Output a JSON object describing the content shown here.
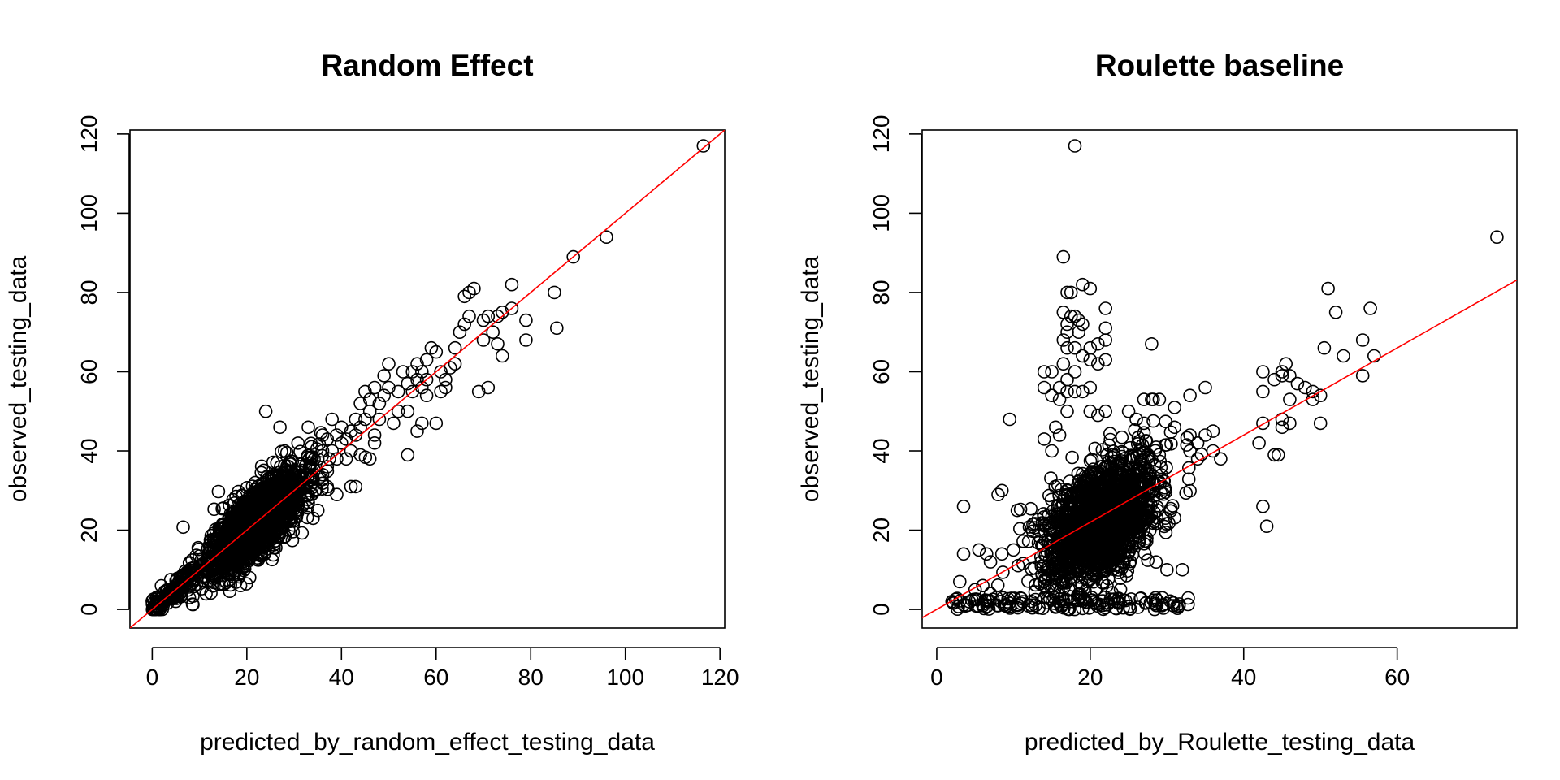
{
  "chart_data": [
    {
      "type": "scatter",
      "title": "Random Effect",
      "xlabel": "predicted_by_random_effect_testing_data",
      "ylabel": "observed_testing_data",
      "xlim": [
        -4.7,
        121
      ],
      "ylim": [
        -4.7,
        121
      ],
      "xticks": [
        0,
        20,
        40,
        60,
        80,
        100,
        120
      ],
      "yticks": [
        0,
        20,
        40,
        60,
        80,
        100,
        120
      ],
      "grid": false,
      "legend": "none",
      "reference_line": {
        "intercept": 0,
        "slope": 1,
        "color": "#ff0000"
      },
      "dense_cluster": {
        "count": 1800,
        "x_mean": 22,
        "x_sd": 5,
        "slope": 1.0,
        "intercept": 0,
        "noise_sd": 4.2,
        "seed": 11
      },
      "low_cluster": {
        "count": 160,
        "x_min": 0,
        "x_max": 9,
        "seed": 21
      },
      "points": [
        [
          116.5,
          117
        ],
        [
          96,
          94
        ],
        [
          89,
          89
        ],
        [
          85,
          80
        ],
        [
          85.5,
          71
        ],
        [
          79,
          73
        ],
        [
          79,
          68
        ],
        [
          76,
          82
        ],
        [
          76,
          76
        ],
        [
          74,
          75
        ],
        [
          73,
          74
        ],
        [
          72,
          70
        ],
        [
          71,
          74
        ],
        [
          70,
          73
        ],
        [
          70,
          68
        ],
        [
          68,
          81
        ],
        [
          67,
          80
        ],
        [
          66,
          79
        ],
        [
          67,
          74
        ],
        [
          66,
          72
        ],
        [
          65,
          70
        ],
        [
          64,
          66
        ],
        [
          64,
          62
        ],
        [
          69,
          55
        ],
        [
          71,
          56
        ],
        [
          74,
          64
        ],
        [
          73,
          67
        ],
        [
          62,
          56
        ],
        [
          60,
          65
        ],
        [
          61,
          60
        ],
        [
          59,
          66
        ],
        [
          58,
          63
        ],
        [
          58,
          58
        ],
        [
          58,
          54
        ],
        [
          57,
          60
        ],
        [
          57,
          56
        ],
        [
          56,
          62
        ],
        [
          56,
          58
        ],
        [
          55,
          60
        ],
        [
          55,
          55
        ],
        [
          54,
          57
        ],
        [
          54,
          50
        ],
        [
          53,
          60
        ],
        [
          52,
          55
        ],
        [
          52,
          50
        ],
        [
          51,
          47
        ],
        [
          50,
          62
        ],
        [
          50,
          56
        ],
        [
          49,
          59
        ],
        [
          49,
          54
        ],
        [
          48,
          52
        ],
        [
          48,
          48
        ],
        [
          47,
          56
        ],
        [
          47,
          44
        ],
        [
          46,
          53
        ],
        [
          46,
          50
        ],
        [
          45,
          55
        ],
        [
          45,
          48
        ],
        [
          44,
          52
        ],
        [
          44,
          46
        ],
        [
          43,
          48
        ],
        [
          43,
          44
        ],
        [
          42,
          45
        ],
        [
          42,
          40
        ],
        [
          41,
          43
        ],
        [
          41,
          38
        ],
        [
          40,
          46
        ],
        [
          40,
          42
        ],
        [
          39,
          44
        ],
        [
          39,
          38
        ],
        [
          38,
          48
        ],
        [
          38,
          40
        ],
        [
          37,
          43
        ],
        [
          37,
          36
        ],
        [
          36,
          40
        ],
        [
          36,
          34
        ],
        [
          35,
          38
        ],
        [
          34,
          32
        ],
        [
          60,
          47
        ],
        [
          54,
          39
        ],
        [
          56,
          45
        ],
        [
          57,
          47
        ],
        [
          62,
          58
        ],
        [
          63,
          61
        ],
        [
          61,
          55
        ],
        [
          47,
          42
        ],
        [
          44,
          39
        ],
        [
          42,
          31
        ],
        [
          43,
          31
        ],
        [
          39,
          29
        ],
        [
          37,
          31
        ],
        [
          35,
          25
        ],
        [
          34,
          23
        ],
        [
          33,
          27
        ],
        [
          33,
          46
        ],
        [
          24,
          50
        ],
        [
          27,
          46
        ],
        [
          28,
          40
        ],
        [
          36,
          44
        ],
        [
          46,
          38
        ]
      ]
    },
    {
      "type": "scatter",
      "title": "Roulette baseline",
      "xlabel": "predicted_by_Roulette_testing_data",
      "ylabel": "observed_testing_data",
      "xlim": [
        -1.9,
        75.6
      ],
      "ylim": [
        -4.7,
        121
      ],
      "xticks": [
        0,
        20,
        40,
        60
      ],
      "yticks": [
        0,
        20,
        40,
        60,
        80,
        100,
        120
      ],
      "grid": false,
      "legend": "none",
      "reference_line": {
        "intercept": 0,
        "slope": 1.1,
        "color": "#ff0000"
      },
      "dense_cluster": {
        "count": 1700,
        "x_mean": 21.5,
        "x_sd": 3.6,
        "slope": 1.05,
        "intercept": 0,
        "noise_sd": 7,
        "seed": 33
      },
      "low_cluster": {
        "count": 140,
        "x_min": 1,
        "x_max": 33,
        "seed": 44
      },
      "points": [
        [
          18,
          117
        ],
        [
          73,
          94
        ],
        [
          16.5,
          89
        ],
        [
          19,
          82
        ],
        [
          20,
          81
        ],
        [
          17,
          80
        ],
        [
          17.5,
          80
        ],
        [
          16.5,
          75
        ],
        [
          17.5,
          74
        ],
        [
          18,
          74
        ],
        [
          19,
          72
        ],
        [
          18.5,
          73
        ],
        [
          17,
          72
        ],
        [
          17,
          70
        ],
        [
          18.5,
          70
        ],
        [
          16.5,
          68
        ],
        [
          17,
          66
        ],
        [
          18,
          66
        ],
        [
          20,
          66
        ],
        [
          22,
          76
        ],
        [
          22,
          71
        ],
        [
          22,
          68
        ],
        [
          21,
          67
        ],
        [
          28,
          67
        ],
        [
          19,
          64
        ],
        [
          20,
          63
        ],
        [
          21,
          62
        ],
        [
          22,
          63
        ],
        [
          16.5,
          62
        ],
        [
          18,
          60
        ],
        [
          14,
          60
        ],
        [
          15,
          60
        ],
        [
          17,
          58
        ],
        [
          16,
          56
        ],
        [
          17,
          55
        ],
        [
          18,
          55
        ],
        [
          19,
          55
        ],
        [
          20,
          56
        ],
        [
          14,
          56
        ],
        [
          15,
          54
        ],
        [
          16,
          53
        ],
        [
          17,
          50
        ],
        [
          15.5,
          46
        ],
        [
          16,
          44
        ],
        [
          14,
          43
        ],
        [
          15,
          40
        ],
        [
          20,
          50
        ],
        [
          22,
          50
        ],
        [
          21,
          49
        ],
        [
          25,
          50
        ],
        [
          26,
          48
        ],
        [
          27,
          47
        ],
        [
          27,
          53
        ],
        [
          28,
          53
        ],
        [
          29,
          53
        ],
        [
          31,
          51
        ],
        [
          33,
          54
        ],
        [
          35,
          56
        ],
        [
          31,
          46
        ],
        [
          33,
          44
        ],
        [
          34,
          42
        ],
        [
          35,
          44
        ],
        [
          36,
          45
        ],
        [
          33,
          40
        ],
        [
          34,
          38
        ],
        [
          36,
          40
        ],
        [
          37,
          38
        ],
        [
          9.5,
          48
        ],
        [
          3.5,
          26
        ],
        [
          8,
          29
        ],
        [
          8.5,
          30
        ],
        [
          10.5,
          25
        ],
        [
          30,
          10
        ],
        [
          32,
          10
        ],
        [
          42,
          42
        ],
        [
          42.5,
          47
        ],
        [
          42.5,
          55
        ],
        [
          42.5,
          60
        ],
        [
          44,
          58
        ],
        [
          45,
          59
        ],
        [
          45,
          60
        ],
        [
          45.5,
          62
        ],
        [
          46,
          59
        ],
        [
          46,
          53
        ],
        [
          45,
          48
        ],
        [
          45,
          46
        ],
        [
          46,
          47
        ],
        [
          44,
          39
        ],
        [
          44.5,
          39
        ],
        [
          42.5,
          26
        ],
        [
          43,
          21
        ],
        [
          47,
          57
        ],
        [
          48,
          56
        ],
        [
          49,
          55
        ],
        [
          49,
          53
        ],
        [
          50,
          47
        ],
        [
          50,
          54
        ],
        [
          50.5,
          66
        ],
        [
          51,
          81
        ],
        [
          52,
          75
        ],
        [
          53,
          64
        ],
        [
          55.5,
          68
        ],
        [
          55.5,
          59
        ],
        [
          56.5,
          76
        ],
        [
          57,
          64
        ],
        [
          3.5,
          14
        ],
        [
          5.5,
          15
        ],
        [
          6.5,
          14
        ],
        [
          7,
          12
        ],
        [
          8.5,
          14
        ],
        [
          10,
          15
        ],
        [
          3,
          7
        ],
        [
          5,
          5
        ],
        [
          6,
          6
        ],
        [
          7,
          4
        ],
        [
          2,
          2
        ]
      ]
    }
  ]
}
